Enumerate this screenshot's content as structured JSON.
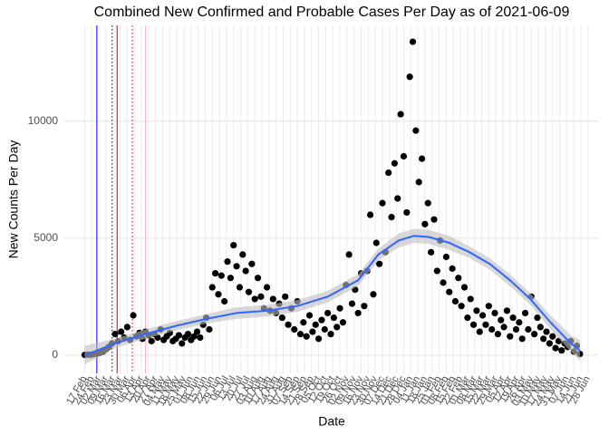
{
  "chart_data": {
    "type": "scatter",
    "title": "Combined New Confirmed and Probable Cases Per Day as of 2021-06-09",
    "x_label": "Date",
    "y_label": "New Counts Per Day",
    "xlim": [
      -21,
      507
    ],
    "ylim": [
      -780,
      14100
    ],
    "yticks": [
      0,
      5000,
      10000
    ],
    "xticks": [
      {
        "value": 0,
        "label": "17 Feb"
      },
      {
        "value": 7,
        "label": "24 Feb"
      },
      {
        "value": 14,
        "label": "02 Mar"
      },
      {
        "value": 21,
        "label": "09 Mar"
      },
      {
        "value": 28,
        "label": "16 Mar"
      },
      {
        "value": 35,
        "label": "23 Mar"
      },
      {
        "value": 42,
        "label": "30 Mar"
      },
      {
        "value": 49,
        "label": "06 Apr"
      },
      {
        "value": 56,
        "label": "13 Apr"
      },
      {
        "value": 63,
        "label": "20 Apr"
      },
      {
        "value": 70,
        "label": "27 Apr"
      },
      {
        "value": 77,
        "label": "04 May"
      },
      {
        "value": 84,
        "label": "11 May"
      },
      {
        "value": 91,
        "label": "18 May"
      },
      {
        "value": 98,
        "label": "25 May"
      },
      {
        "value": 105,
        "label": "01 Jun"
      },
      {
        "value": 112,
        "label": "08 Jun"
      },
      {
        "value": 119,
        "label": "15 Jun"
      },
      {
        "value": 126,
        "label": "22 Jun"
      },
      {
        "value": 133,
        "label": "29 Jun"
      },
      {
        "value": 140,
        "label": "06 Jul"
      },
      {
        "value": 147,
        "label": "13 Jul"
      },
      {
        "value": 154,
        "label": "20 Jul"
      },
      {
        "value": 161,
        "label": "27 Jul"
      },
      {
        "value": 168,
        "label": "03 Aug"
      },
      {
        "value": 175,
        "label": "10 Aug"
      },
      {
        "value": 182,
        "label": "17 Aug"
      },
      {
        "value": 189,
        "label": "24 Aug"
      },
      {
        "value": 196,
        "label": "31 Aug"
      },
      {
        "value": 203,
        "label": "07 Sep"
      },
      {
        "value": 210,
        "label": "14 Sep"
      },
      {
        "value": 217,
        "label": "21 Sep"
      },
      {
        "value": 224,
        "label": "28 Sep"
      },
      {
        "value": 231,
        "label": "05 Oct"
      },
      {
        "value": 238,
        "label": "12 Oct"
      },
      {
        "value": 245,
        "label": "19 Oct"
      },
      {
        "value": 252,
        "label": "26 Oct"
      },
      {
        "value": 259,
        "label": "02 Nov"
      },
      {
        "value": 266,
        "label": "09 Nov"
      },
      {
        "value": 273,
        "label": "16 Nov"
      },
      {
        "value": 280,
        "label": "23 Nov"
      },
      {
        "value": 287,
        "label": "30 Nov"
      },
      {
        "value": 294,
        "label": "07 Dec"
      },
      {
        "value": 301,
        "label": "14 Dec"
      },
      {
        "value": 308,
        "label": "21 Dec"
      },
      {
        "value": 315,
        "label": "28 Dec"
      },
      {
        "value": 322,
        "label": "04 Jan"
      },
      {
        "value": 329,
        "label": "11 Jan"
      },
      {
        "value": 336,
        "label": "18 Jan"
      },
      {
        "value": 343,
        "label": "25 Jan"
      },
      {
        "value": 350,
        "label": "01 Feb"
      },
      {
        "value": 357,
        "label": "08 Feb"
      },
      {
        "value": 364,
        "label": "15 Feb"
      },
      {
        "value": 371,
        "label": "22 Feb"
      },
      {
        "value": 378,
        "label": "01 Mar"
      },
      {
        "value": 385,
        "label": "08 Mar"
      },
      {
        "value": 392,
        "label": "15 Mar"
      },
      {
        "value": 399,
        "label": "22 Mar"
      },
      {
        "value": 406,
        "label": "29 Mar"
      },
      {
        "value": 413,
        "label": "05 Apr"
      },
      {
        "value": 420,
        "label": "12 Apr"
      },
      {
        "value": 427,
        "label": "19 Apr"
      },
      {
        "value": 434,
        "label": "26 Apr"
      },
      {
        "value": 441,
        "label": "03 May"
      },
      {
        "value": 448,
        "label": "10 May"
      },
      {
        "value": 455,
        "label": "17 May"
      },
      {
        "value": 462,
        "label": "24 May"
      },
      {
        "value": 469,
        "label": "31 May"
      },
      {
        "value": 476,
        "label": "07 Jun"
      },
      {
        "value": 483,
        "label": "14 Jun"
      },
      {
        "value": 490,
        "label": "21 Jun"
      },
      {
        "value": 497,
        "label": "28 Jun"
      }
    ],
    "grid": true,
    "point_color": "#000000",
    "x": [
      0,
      3,
      6,
      9,
      12,
      15,
      18,
      21,
      24,
      27,
      30,
      33,
      36,
      39,
      42,
      45,
      48,
      51,
      54,
      57,
      60,
      63,
      66,
      69,
      72,
      75,
      78,
      81,
      84,
      87,
      90,
      93,
      96,
      99,
      102,
      105,
      108,
      111,
      114,
      117,
      120,
      123,
      126,
      129,
      132,
      135,
      138,
      141,
      144,
      147,
      150,
      153,
      156,
      159,
      162,
      165,
      168,
      171,
      174,
      177,
      180,
      183,
      186,
      189,
      192,
      195,
      198,
      201,
      204,
      207,
      210,
      213,
      216,
      219,
      222,
      225,
      228,
      231,
      234,
      237,
      240,
      243,
      246,
      249,
      252,
      255,
      258,
      261,
      264,
      267,
      270,
      273,
      276,
      279,
      282,
      285,
      288,
      291,
      294,
      297,
      300,
      303,
      306,
      309,
      312,
      315,
      318,
      321,
      324,
      327,
      330,
      333,
      336,
      339,
      342,
      345,
      348,
      351,
      354,
      357,
      360,
      363,
      366,
      369,
      372,
      375,
      378,
      381,
      384,
      387,
      390,
      393,
      396,
      399,
      402,
      405,
      408,
      411,
      414,
      417,
      420,
      423,
      426,
      429,
      432,
      435,
      438,
      441,
      444,
      447,
      450,
      453,
      456,
      459,
      462,
      465,
      468,
      471,
      474,
      477,
      480,
      483,
      486,
      489
    ],
    "values": [
      10,
      20,
      15,
      40,
      60,
      100,
      150,
      250,
      350,
      500,
      900,
      600,
      1000,
      750,
      1200,
      650,
      1700,
      800,
      950,
      700,
      1000,
      850,
      600,
      900,
      750,
      1100,
      650,
      800,
      950,
      600,
      700,
      850,
      500,
      750,
      900,
      650,
      800,
      1000,
      750,
      1300,
      1600,
      1100,
      2900,
      3500,
      2600,
      3400,
      2300,
      4000,
      3300,
      4700,
      3800,
      2900,
      4300,
      3600,
      2700,
      3900,
      2400,
      3300,
      2500,
      2000,
      2900,
      1900,
      2400,
      1800,
      2200,
      1600,
      2500,
      1300,
      2000,
      1100,
      2300,
      900,
      1400,
      800,
      1700,
      1000,
      1300,
      700,
      1500,
      1100,
      1800,
      900,
      1600,
      1200,
      2000,
      1400,
      3000,
      4300,
      2200,
      2800,
      1800,
      3500,
      2100,
      3600,
      6000,
      2600,
      4800,
      3900,
      6500,
      4400,
      7800,
      5900,
      8200,
      6700,
      10300,
      8500,
      6100,
      11900,
      13400,
      9600,
      7400,
      8400,
      5600,
      6500,
      4400,
      5800,
      3600,
      4900,
      3100,
      4200,
      2700,
      3700,
      2300,
      3300,
      2100,
      2900,
      1600,
      2400,
      1300,
      1900,
      1000,
      1700,
      1300,
      2100,
      1100,
      1800,
      900,
      1500,
      1200,
      1900,
      800,
      1600,
      1100,
      1400,
      700,
      1800,
      1100,
      2500,
      900,
      1600,
      1200,
      700,
      1000,
      500,
      800,
      300,
      600,
      200,
      500,
      350,
      600,
      150,
      400,
      50
    ],
    "smooth": {
      "color": "#3366ff",
      "band_color": "#bebebe",
      "x": [
        0,
        30,
        60,
        90,
        120,
        150,
        180,
        210,
        240,
        270,
        290,
        310,
        325,
        340,
        360,
        380,
        400,
        420,
        440,
        460,
        480,
        489
      ],
      "values": [
        0,
        500,
        900,
        1250,
        1550,
        1800,
        1900,
        2100,
        2500,
        3200,
        4300,
        4900,
        5100,
        5050,
        4800,
        4400,
        3900,
        3200,
        2400,
        1400,
        500,
        200
      ],
      "lower": [
        -400,
        300,
        700,
        1050,
        1350,
        1550,
        1650,
        1850,
        2250,
        2950,
        4050,
        4600,
        4800,
        4750,
        4500,
        4150,
        3650,
        2950,
        2150,
        1100,
        150,
        -250
      ],
      "upper": [
        400,
        700,
        1100,
        1450,
        1750,
        2050,
        2150,
        2350,
        2750,
        3450,
        4550,
        5200,
        5400,
        5350,
        5100,
        4650,
        4150,
        3450,
        2650,
        1700,
        850,
        650
      ]
    },
    "vlines": [
      {
        "x": 12,
        "color": "#0000ff",
        "dash": "solid"
      },
      {
        "x": 27,
        "color": "#0000ff",
        "dash": "dotted"
      },
      {
        "x": 32,
        "color": "#cc0000",
        "dash": "solid"
      },
      {
        "x": 47,
        "color": "#cc0000",
        "dash": "dotted"
      },
      {
        "x": 60,
        "color": "#ffb6c1",
        "dash": "solid"
      }
    ]
  }
}
